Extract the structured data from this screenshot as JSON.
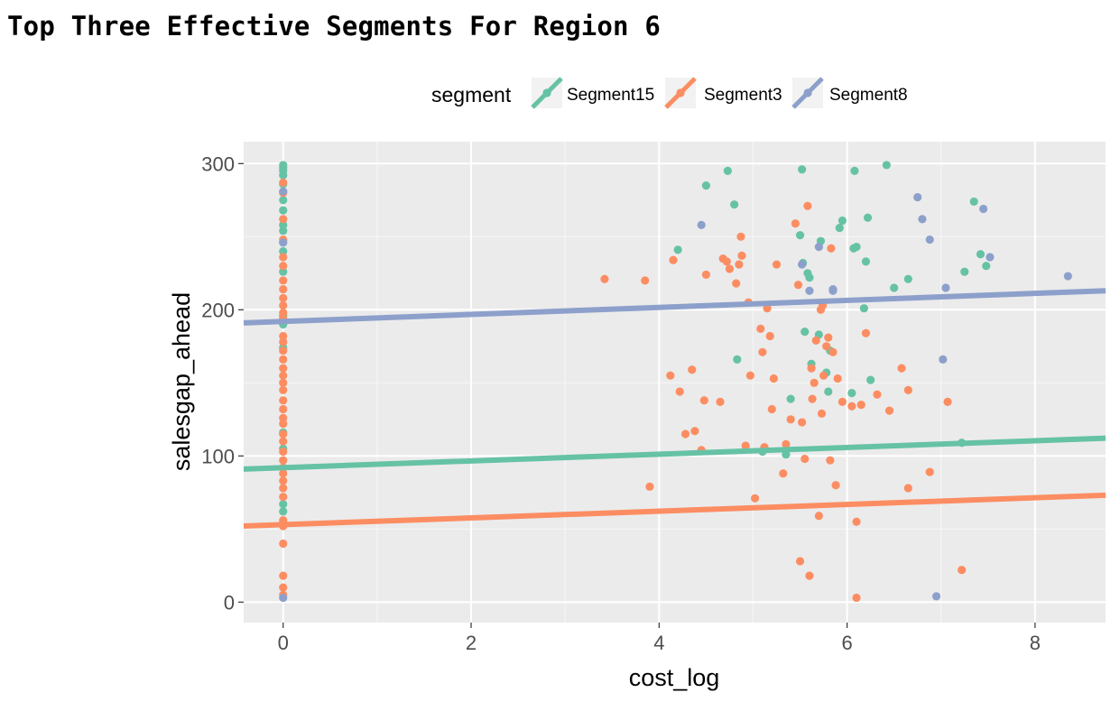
{
  "page": {
    "title": "Top Three Effective Segments For Region 6"
  },
  "chart_data": {
    "type": "scatter",
    "title": "Top Three Effective Segments For Region 6",
    "xlabel": "cost_log",
    "ylabel": "salesgap_ahead",
    "xlim": [
      -0.42,
      8.75
    ],
    "ylim": [
      -14,
      315
    ],
    "x_ticks": [
      0,
      2,
      4,
      6,
      8
    ],
    "y_ticks": [
      0,
      100,
      200,
      300
    ],
    "grid": true,
    "legend": {
      "title": "segment",
      "position": "top"
    },
    "series": [
      {
        "name": "Segment15",
        "color": "#66c2a5",
        "trend": {
          "intercept": 92,
          "slope": 2.3
        },
        "points": [
          [
            0,
            299
          ],
          [
            0,
            297
          ],
          [
            0,
            295
          ],
          [
            0,
            292
          ],
          [
            0,
            286
          ],
          [
            0,
            275
          ],
          [
            0,
            268
          ],
          [
            0,
            258
          ],
          [
            0,
            254
          ],
          [
            0,
            246
          ],
          [
            0,
            240
          ],
          [
            0,
            226
          ],
          [
            0,
            196
          ],
          [
            0,
            190
          ],
          [
            0,
            174
          ],
          [
            0,
            116
          ],
          [
            0,
            105
          ],
          [
            0,
            67
          ],
          [
            0,
            62
          ],
          [
            4.2,
            241
          ],
          [
            4.5,
            285
          ],
          [
            4.73,
            295
          ],
          [
            4.8,
            272
          ],
          [
            4.83,
            166
          ],
          [
            5.1,
            103
          ],
          [
            5.35,
            101
          ],
          [
            5.4,
            139
          ],
          [
            5.5,
            251
          ],
          [
            5.52,
            296
          ],
          [
            5.53,
            232
          ],
          [
            5.55,
            185
          ],
          [
            5.58,
            225
          ],
          [
            5.6,
            222
          ],
          [
            5.62,
            163
          ],
          [
            5.7,
            183
          ],
          [
            5.72,
            247
          ],
          [
            5.78,
            157
          ],
          [
            5.8,
            144
          ],
          [
            5.82,
            172
          ],
          [
            5.92,
            256
          ],
          [
            5.95,
            261
          ],
          [
            6.05,
            143
          ],
          [
            6.07,
            242
          ],
          [
            6.08,
            295
          ],
          [
            6.1,
            243
          ],
          [
            6.18,
            201
          ],
          [
            6.2,
            233
          ],
          [
            6.22,
            263
          ],
          [
            6.25,
            152
          ],
          [
            6.42,
            299
          ],
          [
            6.5,
            215
          ],
          [
            6.65,
            221
          ],
          [
            7.22,
            109
          ],
          [
            7.25,
            226
          ],
          [
            7.35,
            274
          ],
          [
            7.42,
            238
          ],
          [
            7.48,
            230
          ]
        ]
      },
      {
        "name": "Segment3",
        "color": "#fc8d62",
        "trend": {
          "intercept": 53,
          "slope": 2.3
        },
        "points": [
          [
            0,
            287
          ],
          [
            0,
            280
          ],
          [
            0,
            262
          ],
          [
            0,
            248
          ],
          [
            0,
            236
          ],
          [
            0,
            230
          ],
          [
            0,
            220
          ],
          [
            0,
            214
          ],
          [
            0,
            208
          ],
          [
            0,
            203
          ],
          [
            0,
            198
          ],
          [
            0,
            194
          ],
          [
            0,
            182
          ],
          [
            0,
            178
          ],
          [
            0,
            172
          ],
          [
            0,
            166
          ],
          [
            0,
            160
          ],
          [
            0,
            155
          ],
          [
            0,
            150
          ],
          [
            0,
            145
          ],
          [
            0,
            138
          ],
          [
            0,
            132
          ],
          [
            0,
            126
          ],
          [
            0,
            122
          ],
          [
            0,
            115
          ],
          [
            0,
            110
          ],
          [
            0,
            103
          ],
          [
            0,
            97
          ],
          [
            0,
            92
          ],
          [
            0,
            88
          ],
          [
            0,
            83
          ],
          [
            0,
            78
          ],
          [
            0,
            72
          ],
          [
            0,
            56
          ],
          [
            0,
            52
          ],
          [
            0,
            40
          ],
          [
            0,
            18
          ],
          [
            0,
            10
          ],
          [
            0,
            5
          ],
          [
            3.42,
            221
          ],
          [
            3.85,
            220
          ],
          [
            3.9,
            79
          ],
          [
            4.12,
            155
          ],
          [
            4.15,
            234
          ],
          [
            4.22,
            144
          ],
          [
            4.28,
            115
          ],
          [
            4.35,
            159
          ],
          [
            4.38,
            117
          ],
          [
            4.45,
            104
          ],
          [
            4.48,
            138
          ],
          [
            4.5,
            224
          ],
          [
            4.65,
            137
          ],
          [
            4.68,
            235
          ],
          [
            4.72,
            233
          ],
          [
            4.75,
            228
          ],
          [
            4.82,
            218
          ],
          [
            4.85,
            231
          ],
          [
            4.87,
            250
          ],
          [
            4.88,
            237
          ],
          [
            4.92,
            107
          ],
          [
            4.95,
            205
          ],
          [
            4.97,
            155
          ],
          [
            5.02,
            71
          ],
          [
            5.08,
            187
          ],
          [
            5.1,
            171
          ],
          [
            5.12,
            106
          ],
          [
            5.15,
            201
          ],
          [
            5.18,
            182
          ],
          [
            5.2,
            132
          ],
          [
            5.22,
            153
          ],
          [
            5.25,
            231
          ],
          [
            5.32,
            88
          ],
          [
            5.35,
            108
          ],
          [
            5.4,
            125
          ],
          [
            5.45,
            259
          ],
          [
            5.48,
            217
          ],
          [
            5.5,
            28
          ],
          [
            5.52,
            123
          ],
          [
            5.55,
            98
          ],
          [
            5.58,
            271
          ],
          [
            5.6,
            18
          ],
          [
            5.62,
            160
          ],
          [
            5.63,
            139
          ],
          [
            5.65,
            150
          ],
          [
            5.67,
            179
          ],
          [
            5.7,
            59
          ],
          [
            5.72,
            200
          ],
          [
            5.73,
            129
          ],
          [
            5.74,
            203
          ],
          [
            5.75,
            155
          ],
          [
            5.78,
            175
          ],
          [
            5.8,
            181
          ],
          [
            5.82,
            97
          ],
          [
            5.83,
            242
          ],
          [
            5.85,
            171
          ],
          [
            5.88,
            80
          ],
          [
            5.9,
            153
          ],
          [
            5.95,
            137
          ],
          [
            6.05,
            134
          ],
          [
            6.1,
            3
          ],
          [
            6.1,
            55
          ],
          [
            6.15,
            135
          ],
          [
            6.2,
            184
          ],
          [
            6.32,
            142
          ],
          [
            6.45,
            131
          ],
          [
            6.58,
            160
          ],
          [
            6.65,
            145
          ],
          [
            6.65,
            78
          ],
          [
            6.88,
            89
          ],
          [
            7.07,
            137
          ],
          [
            7.22,
            22
          ]
        ]
      },
      {
        "name": "Segment8",
        "color": "#8da0cb",
        "trend": {
          "intercept": 192,
          "slope": 2.4
        },
        "points": [
          [
            0,
            281
          ],
          [
            0,
            246
          ],
          [
            0,
            3
          ],
          [
            4.45,
            258
          ],
          [
            5.52,
            231
          ],
          [
            5.6,
            213
          ],
          [
            5.7,
            243
          ],
          [
            5.85,
            214
          ],
          [
            5.85,
            213
          ],
          [
            6.75,
            277
          ],
          [
            6.8,
            262
          ],
          [
            6.88,
            248
          ],
          [
            6.95,
            4
          ],
          [
            7.02,
            166
          ],
          [
            7.05,
            215
          ],
          [
            7.45,
            269
          ],
          [
            7.52,
            236
          ],
          [
            8.35,
            223
          ]
        ]
      }
    ]
  }
}
